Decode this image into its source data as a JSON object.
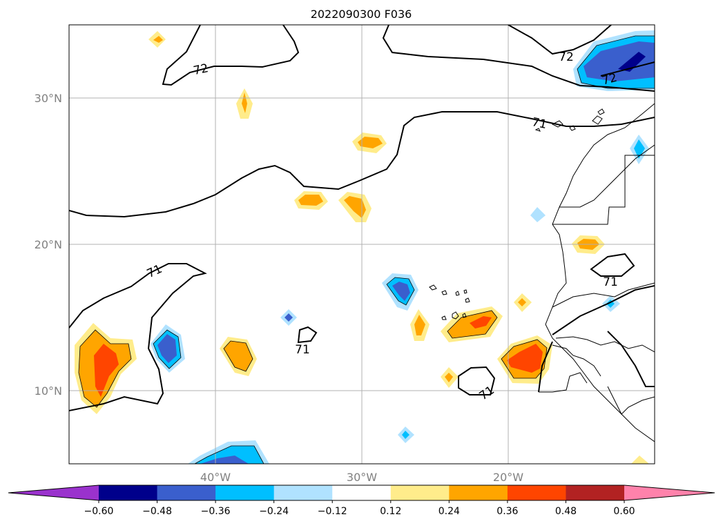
{
  "title": "2022090300 F036",
  "map": {
    "lat_ticks": [
      "30°N",
      "20°N",
      "10°N"
    ],
    "lon_ticks": [
      "40°W",
      "30°W",
      "20°W"
    ],
    "contour_labels": [
      "72",
      "72",
      "72",
      "71",
      "71",
      "71",
      "71",
      "71"
    ]
  },
  "colorbar": {
    "ticks": [
      "−0.60",
      "−0.48",
      "−0.36",
      "−0.24",
      "−0.12",
      "0.12",
      "0.24",
      "0.36",
      "0.48",
      "0.60"
    ],
    "colors": [
      "#9a32cd",
      "#00008b",
      "#3a5fcd",
      "#00bfff",
      "#b0e2ff",
      "#ffffff",
      "#ffec8b",
      "#ffa500",
      "#ff4500",
      "#b22222",
      "#ff82ab"
    ]
  }
}
